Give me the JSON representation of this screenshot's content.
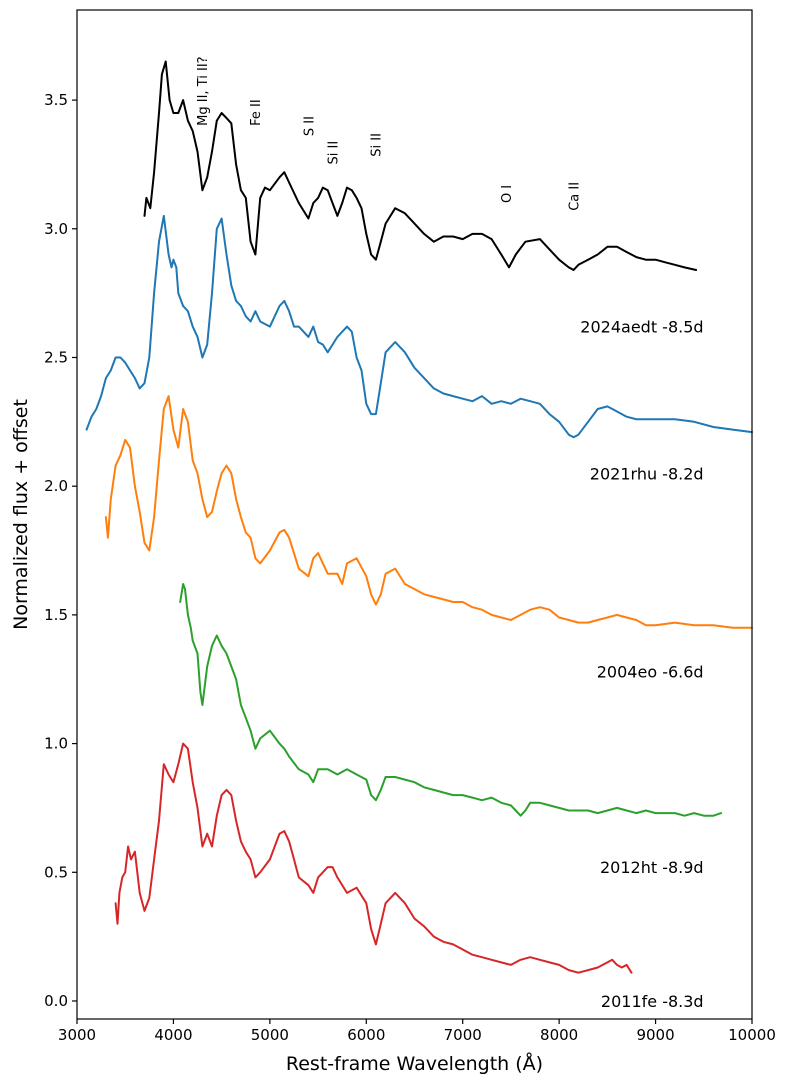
{
  "chart_data": {
    "type": "line",
    "title": "",
    "xlabel": "Rest-frame Wavelength (Å)",
    "ylabel": "Normalized flux + offset",
    "xlim": [
      3000,
      10000
    ],
    "ylim": [
      -0.07,
      3.85
    ],
    "xticks": [
      3000,
      4000,
      5000,
      6000,
      7000,
      8000,
      9000,
      10000
    ],
    "yticks": [
      0.0,
      0.5,
      1.0,
      1.5,
      2.0,
      2.5,
      3.0,
      3.5
    ],
    "grid": false,
    "series": [
      {
        "name": "2024aedt -8.5d",
        "color": "#000000",
        "label_at": [
          9000,
          2.62
        ],
        "x": [
          3700,
          3720,
          3760,
          3800,
          3850,
          3880,
          3920,
          3960,
          4000,
          4050,
          4100,
          4150,
          4200,
          4250,
          4300,
          4350,
          4400,
          4450,
          4500,
          4550,
          4600,
          4650,
          4700,
          4750,
          4800,
          4850,
          4900,
          4950,
          5000,
          5100,
          5150,
          5200,
          5300,
          5400,
          5450,
          5500,
          5550,
          5600,
          5650,
          5700,
          5750,
          5800,
          5850,
          5900,
          5950,
          6000,
          6050,
          6100,
          6150,
          6200,
          6300,
          6400,
          6500,
          6600,
          6700,
          6800,
          6900,
          7000,
          7100,
          7200,
          7300,
          7400,
          7480,
          7550,
          7650,
          7800,
          7900,
          8000,
          8100,
          8150,
          8200,
          8300,
          8400,
          8500,
          8600,
          8700,
          8800,
          8900,
          9000,
          9100,
          9200,
          9300,
          9420
        ],
        "y": [
          3.05,
          3.12,
          3.08,
          3.22,
          3.45,
          3.6,
          3.65,
          3.5,
          3.45,
          3.45,
          3.5,
          3.42,
          3.38,
          3.3,
          3.15,
          3.2,
          3.3,
          3.42,
          3.45,
          3.43,
          3.41,
          3.25,
          3.15,
          3.12,
          2.95,
          2.9,
          3.12,
          3.16,
          3.15,
          3.2,
          3.22,
          3.18,
          3.1,
          3.04,
          3.1,
          3.12,
          3.16,
          3.15,
          3.1,
          3.05,
          3.1,
          3.16,
          3.15,
          3.12,
          3.08,
          2.98,
          2.9,
          2.88,
          2.95,
          3.02,
          3.08,
          3.06,
          3.02,
          2.98,
          2.95,
          2.97,
          2.97,
          2.96,
          2.98,
          2.98,
          2.96,
          2.9,
          2.85,
          2.9,
          2.95,
          2.96,
          2.92,
          2.88,
          2.85,
          2.84,
          2.86,
          2.88,
          2.9,
          2.93,
          2.93,
          2.91,
          2.89,
          2.88,
          2.88,
          2.87,
          2.86,
          2.85,
          2.84
        ]
      },
      {
        "name": "2021rhu -8.2d",
        "color": "#1f77b4",
        "label_at": [
          9000,
          2.05
        ],
        "x": [
          3100,
          3150,
          3200,
          3250,
          3300,
          3350,
          3400,
          3450,
          3500,
          3550,
          3600,
          3650,
          3700,
          3750,
          3800,
          3850,
          3900,
          3950,
          3980,
          4000,
          4030,
          4050,
          4100,
          4150,
          4200,
          4250,
          4300,
          4350,
          4400,
          4450,
          4500,
          4550,
          4600,
          4650,
          4700,
          4750,
          4800,
          4850,
          4900,
          5000,
          5100,
          5150,
          5200,
          5250,
          5300,
          5400,
          5450,
          5500,
          5550,
          5600,
          5700,
          5800,
          5850,
          5900,
          5950,
          6000,
          6050,
          6100,
          6150,
          6200,
          6300,
          6400,
          6500,
          6600,
          6700,
          6800,
          6900,
          7000,
          7100,
          7200,
          7300,
          7400,
          7500,
          7600,
          7700,
          7800,
          7900,
          8000,
          8100,
          8150,
          8200,
          8300,
          8400,
          8500,
          8600,
          8700,
          8800,
          8900,
          9000,
          9200,
          9400,
          9600,
          9800,
          10000
        ],
        "y": [
          2.22,
          2.27,
          2.3,
          2.35,
          2.42,
          2.45,
          2.5,
          2.5,
          2.48,
          2.45,
          2.42,
          2.38,
          2.4,
          2.5,
          2.75,
          2.95,
          3.05,
          2.9,
          2.85,
          2.88,
          2.85,
          2.75,
          2.7,
          2.68,
          2.62,
          2.58,
          2.5,
          2.55,
          2.75,
          3.0,
          3.04,
          2.9,
          2.78,
          2.72,
          2.7,
          2.66,
          2.64,
          2.68,
          2.64,
          2.62,
          2.7,
          2.72,
          2.68,
          2.62,
          2.62,
          2.58,
          2.62,
          2.56,
          2.55,
          2.52,
          2.58,
          2.62,
          2.6,
          2.5,
          2.45,
          2.32,
          2.28,
          2.28,
          2.4,
          2.52,
          2.56,
          2.52,
          2.46,
          2.42,
          2.38,
          2.36,
          2.35,
          2.34,
          2.33,
          2.35,
          2.32,
          2.33,
          2.32,
          2.34,
          2.33,
          2.32,
          2.28,
          2.25,
          2.2,
          2.19,
          2.2,
          2.25,
          2.3,
          2.31,
          2.29,
          2.27,
          2.26,
          2.26,
          2.26,
          2.26,
          2.25,
          2.23,
          2.22,
          2.21
        ]
      },
      {
        "name": "2004eo -6.6d",
        "color": "#ff7f0e",
        "label_at": [
          9000,
          1.28
        ],
        "x": [
          3300,
          3320,
          3350,
          3400,
          3450,
          3500,
          3550,
          3600,
          3650,
          3700,
          3750,
          3800,
          3850,
          3900,
          3950,
          4000,
          4050,
          4100,
          4150,
          4200,
          4250,
          4300,
          4350,
          4400,
          4450,
          4500,
          4550,
          4600,
          4650,
          4700,
          4750,
          4800,
          4850,
          4900,
          5000,
          5100,
          5150,
          5200,
          5300,
          5400,
          5450,
          5500,
          5550,
          5600,
          5700,
          5750,
          5800,
          5900,
          6000,
          6050,
          6100,
          6150,
          6200,
          6300,
          6400,
          6500,
          6600,
          6700,
          6800,
          6900,
          7000,
          7100,
          7200,
          7300,
          7400,
          7500,
          7600,
          7700,
          7800,
          7900,
          8000,
          8100,
          8200,
          8300,
          8400,
          8500,
          8600,
          8700,
          8800,
          8900,
          9000,
          9200,
          9400,
          9600,
          9800,
          10000
        ],
        "y": [
          1.88,
          1.8,
          1.95,
          2.08,
          2.12,
          2.18,
          2.15,
          2.0,
          1.9,
          1.78,
          1.75,
          1.88,
          2.1,
          2.3,
          2.35,
          2.22,
          2.15,
          2.3,
          2.25,
          2.1,
          2.05,
          1.95,
          1.88,
          1.9,
          1.98,
          2.05,
          2.08,
          2.05,
          1.95,
          1.88,
          1.82,
          1.8,
          1.72,
          1.7,
          1.75,
          1.82,
          1.83,
          1.8,
          1.68,
          1.65,
          1.72,
          1.74,
          1.7,
          1.66,
          1.66,
          1.62,
          1.7,
          1.72,
          1.65,
          1.58,
          1.54,
          1.58,
          1.66,
          1.68,
          1.62,
          1.6,
          1.58,
          1.57,
          1.56,
          1.55,
          1.55,
          1.53,
          1.52,
          1.5,
          1.49,
          1.48,
          1.5,
          1.52,
          1.53,
          1.52,
          1.49,
          1.48,
          1.47,
          1.47,
          1.48,
          1.49,
          1.5,
          1.49,
          1.48,
          1.46,
          1.46,
          1.47,
          1.46,
          1.46,
          1.45,
          1.45
        ]
      },
      {
        "name": "2012ht -8.9d",
        "color": "#2ca02c",
        "label_at": [
          9000,
          0.52
        ],
        "x": [
          4070,
          4100,
          4120,
          4150,
          4180,
          4200,
          4250,
          4280,
          4300,
          4350,
          4400,
          4450,
          4500,
          4550,
          4600,
          4650,
          4700,
          4750,
          4800,
          4850,
          4900,
          5000,
          5100,
          5150,
          5200,
          5300,
          5400,
          5450,
          5500,
          5600,
          5700,
          5800,
          5900,
          6000,
          6050,
          6100,
          6150,
          6200,
          6300,
          6400,
          6500,
          6600,
          6700,
          6800,
          6900,
          7000,
          7100,
          7200,
          7300,
          7400,
          7500,
          7550,
          7600,
          7650,
          7700,
          7800,
          7900,
          8000,
          8100,
          8200,
          8300,
          8400,
          8500,
          8600,
          8700,
          8800,
          8900,
          9000,
          9100,
          9200,
          9300,
          9400,
          9500,
          9600,
          9680
        ],
        "y": [
          1.55,
          1.62,
          1.6,
          1.5,
          1.45,
          1.4,
          1.35,
          1.2,
          1.15,
          1.3,
          1.38,
          1.42,
          1.38,
          1.35,
          1.3,
          1.25,
          1.15,
          1.1,
          1.05,
          0.98,
          1.02,
          1.05,
          1.0,
          0.98,
          0.95,
          0.9,
          0.88,
          0.85,
          0.9,
          0.9,
          0.88,
          0.9,
          0.88,
          0.86,
          0.8,
          0.78,
          0.82,
          0.87,
          0.87,
          0.86,
          0.85,
          0.83,
          0.82,
          0.81,
          0.8,
          0.8,
          0.79,
          0.78,
          0.79,
          0.77,
          0.76,
          0.74,
          0.72,
          0.74,
          0.77,
          0.77,
          0.76,
          0.75,
          0.74,
          0.74,
          0.74,
          0.73,
          0.74,
          0.75,
          0.74,
          0.73,
          0.74,
          0.73,
          0.73,
          0.73,
          0.72,
          0.73,
          0.72,
          0.72,
          0.73
        ]
      },
      {
        "name": "2011fe -8.3d",
        "color": "#d62728",
        "label_at": [
          9000,
          0.0
        ],
        "x": [
          3400,
          3420,
          3440,
          3470,
          3500,
          3530,
          3560,
          3600,
          3650,
          3700,
          3750,
          3800,
          3850,
          3900,
          3950,
          4000,
          4050,
          4100,
          4150,
          4200,
          4250,
          4300,
          4350,
          4400,
          4450,
          4500,
          4550,
          4600,
          4650,
          4700,
          4750,
          4800,
          4850,
          4900,
          5000,
          5100,
          5150,
          5200,
          5250,
          5300,
          5400,
          5450,
          5500,
          5600,
          5650,
          5700,
          5800,
          5900,
          6000,
          6050,
          6100,
          6150,
          6200,
          6300,
          6400,
          6500,
          6600,
          6700,
          6800,
          6900,
          7000,
          7100,
          7200,
          7300,
          7400,
          7500,
          7600,
          7700,
          7800,
          7900,
          8000,
          8100,
          8200,
          8300,
          8400,
          8500,
          8550,
          8600,
          8650,
          8700,
          8750
        ],
        "y": [
          0.38,
          0.3,
          0.42,
          0.48,
          0.5,
          0.6,
          0.55,
          0.58,
          0.42,
          0.35,
          0.4,
          0.55,
          0.7,
          0.92,
          0.88,
          0.85,
          0.92,
          1.0,
          0.98,
          0.85,
          0.75,
          0.6,
          0.65,
          0.6,
          0.72,
          0.8,
          0.82,
          0.8,
          0.7,
          0.62,
          0.58,
          0.55,
          0.48,
          0.5,
          0.55,
          0.65,
          0.66,
          0.62,
          0.55,
          0.48,
          0.45,
          0.42,
          0.48,
          0.52,
          0.52,
          0.48,
          0.42,
          0.44,
          0.38,
          0.28,
          0.22,
          0.3,
          0.38,
          0.42,
          0.38,
          0.32,
          0.29,
          0.25,
          0.23,
          0.22,
          0.2,
          0.18,
          0.17,
          0.16,
          0.15,
          0.14,
          0.16,
          0.17,
          0.16,
          0.15,
          0.14,
          0.12,
          0.11,
          0.12,
          0.13,
          0.15,
          0.16,
          0.14,
          0.13,
          0.14,
          0.11
        ]
      }
    ],
    "annotations": [
      {
        "text": "Mg II, Ti II?",
        "x": 4350,
        "y": 3.4
      },
      {
        "text": "Fe II",
        "x": 4900,
        "y": 3.4
      },
      {
        "text": "S II",
        "x": 5450,
        "y": 3.36
      },
      {
        "text": "Si II",
        "x": 5700,
        "y": 3.25
      },
      {
        "text": "Si II",
        "x": 6150,
        "y": 3.28
      },
      {
        "text": "O I",
        "x": 7500,
        "y": 3.1
      },
      {
        "text": "Ca II",
        "x": 8200,
        "y": 3.07
      }
    ]
  }
}
